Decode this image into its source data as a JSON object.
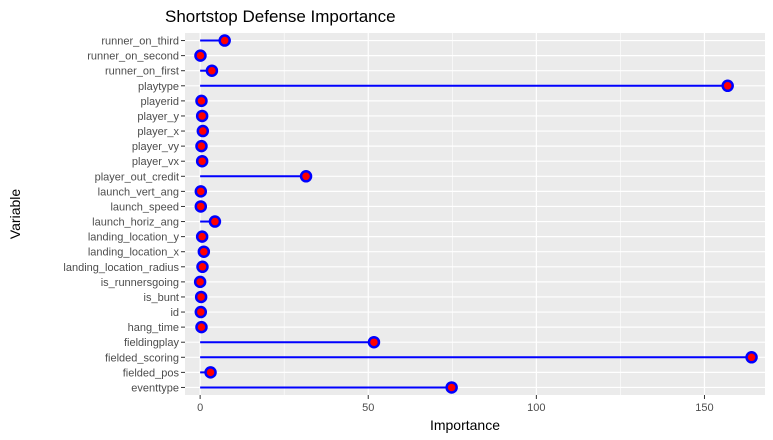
{
  "chart_data": {
    "type": "lollipop",
    "title": "Shortstop Defense Importance",
    "xlabel": "Importance",
    "ylabel": "Variable",
    "xlim": [
      -4.5,
      168
    ],
    "xticks": [
      0,
      50,
      100,
      150
    ],
    "grid": true,
    "colors": {
      "panel": "#ebebeb",
      "grid_major": "#ffffff",
      "segment": "#0000ff",
      "point_fill": "#ff0000",
      "point_stroke": "#0000ff"
    },
    "categories": [
      "runner_on_third",
      "runner_on_second",
      "runner_on_first",
      "playtype",
      "playerid",
      "player_y",
      "player_x",
      "player_vy",
      "player_vx",
      "player_out_credit",
      "launch_vert_ang",
      "launch_speed",
      "launch_horiz_ang",
      "landing_location_y",
      "landing_location_x",
      "landing_location_radius",
      "is_runnersgoing",
      "is_bunt",
      "id",
      "hang_time",
      "fieldingplay",
      "fielded_scoring",
      "fielded_pos",
      "eventtype"
    ],
    "values": [
      7.3,
      0.1,
      3.5,
      156.9,
      0.4,
      0.6,
      0.8,
      0.4,
      0.6,
      31.5,
      0.2,
      0.2,
      4.4,
      0.6,
      1.1,
      0.7,
      0.0,
      0.3,
      0.2,
      0.4,
      51.7,
      164.0,
      3.1,
      74.8
    ]
  }
}
